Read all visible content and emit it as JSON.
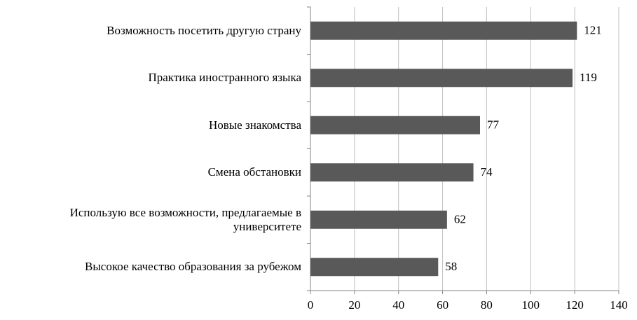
{
  "chart_data": {
    "type": "bar",
    "orientation": "horizontal",
    "categories": [
      "Возможность посетить другую страну",
      "Практика иностранного языка",
      "Новые знакомства",
      "Смена обстановки",
      "Использую все возможности, предлагаемые в университете",
      "Высокое качество образования за рубежом"
    ],
    "values": [
      121,
      119,
      77,
      74,
      62,
      58
    ],
    "color": "#595959",
    "xlim": [
      0,
      140
    ],
    "xticks": [
      0,
      20,
      40,
      60,
      80,
      100,
      120,
      140
    ],
    "grid": true
  }
}
